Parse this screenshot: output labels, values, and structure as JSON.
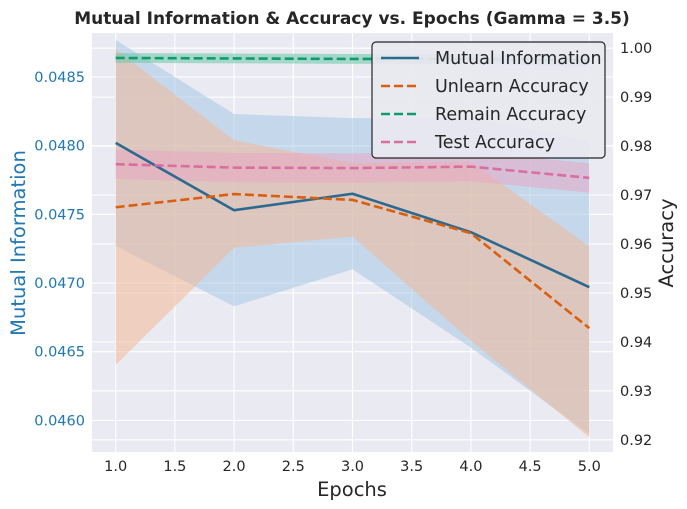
{
  "chart_data": {
    "type": "line",
    "title": "Mutual Information & Accuracy vs. Epochs (Gamma = 3.5)",
    "xlabel": "Epochs",
    "ylabel_left": "Mutual Information",
    "ylabel_right": "Accuracy",
    "x": [
      1,
      2,
      3,
      4,
      5
    ],
    "xlim": [
      0.8,
      5.2
    ],
    "ylim_left": [
      0.04577,
      0.04882
    ],
    "ylim_right": [
      0.9175,
      1.0031
    ],
    "x_ticks": [
      1.0,
      1.5,
      2.0,
      2.5,
      3.0,
      3.5,
      4.0,
      4.5,
      5.0
    ],
    "x_tick_labels": [
      "1.0",
      "1.5",
      "2.0",
      "2.5",
      "3.0",
      "3.5",
      "4.0",
      "4.5",
      "5.0"
    ],
    "left_ticks": [
      0.046,
      0.0465,
      0.047,
      0.0475,
      0.048,
      0.0485
    ],
    "left_tick_labels": [
      "0.0460",
      "0.0465",
      "0.0470",
      "0.0475",
      "0.0480",
      "0.0485"
    ],
    "right_ticks": [
      0.92,
      0.93,
      0.94,
      0.95,
      0.96,
      0.97,
      0.98,
      0.99,
      1.0
    ],
    "right_tick_labels": [
      "0.92",
      "0.93",
      "0.94",
      "0.95",
      "0.96",
      "0.97",
      "0.98",
      "0.99",
      "1.00"
    ],
    "grid": true,
    "legend_position": "top-right",
    "series": [
      {
        "name": "Mutual Information",
        "axis": "left",
        "style": "solid",
        "color": "#2b6a8e",
        "band_color": "#a6c8e6",
        "values": [
          0.04802,
          0.04753,
          0.04765,
          0.04737,
          0.04697
        ],
        "lower": [
          0.04727,
          0.04683,
          0.0471,
          0.04653,
          0.0459
        ],
        "upper": [
          0.04877,
          0.04823,
          0.0482,
          0.0482,
          0.04803
        ]
      },
      {
        "name": "Unlearn Accuracy",
        "axis": "right",
        "style": "dashed",
        "color": "#d95f0e",
        "band_color": "#f0b898",
        "values": [
          0.9675,
          0.9702,
          0.969,
          0.9622,
          0.9428
        ],
        "lower": [
          0.9353,
          0.9592,
          0.9615,
          0.9402,
          0.9205
        ],
        "upper": [
          0.9998,
          0.9812,
          0.9765,
          0.9768,
          0.9595
        ]
      },
      {
        "name": "Remain Accuracy",
        "axis": "right",
        "style": "dashed",
        "color": "#0d9b6f",
        "band_color": "#69c7a6",
        "values": [
          0.998,
          0.9979,
          0.9978,
          0.9978,
          0.9975
        ],
        "lower": [
          0.997,
          0.9969,
          0.9968,
          0.9968,
          0.9962
        ],
        "upper": [
          0.999,
          0.9989,
          0.9988,
          0.9988,
          0.9986
        ]
      },
      {
        "name": "Test Accuracy",
        "axis": "right",
        "style": "dashed",
        "color": "#d96f9e",
        "band_color": "#e8a7c4",
        "values": [
          0.9763,
          0.9756,
          0.9755,
          0.9758,
          0.9735
        ],
        "lower": [
          0.9733,
          0.9726,
          0.9725,
          0.9728,
          0.9705
        ],
        "upper": [
          0.9793,
          0.9786,
          0.9785,
          0.9788,
          0.9765
        ]
      }
    ]
  }
}
